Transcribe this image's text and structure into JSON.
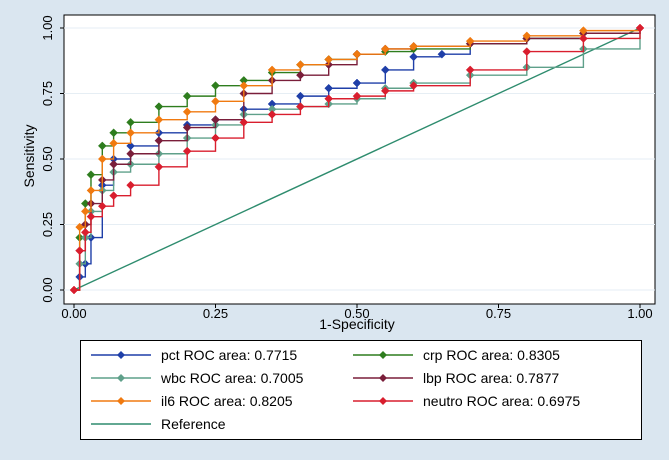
{
  "chart_data": {
    "type": "line",
    "xlabel": "1-Specificity",
    "ylabel": "Sensitivity",
    "xlim": [
      0,
      1
    ],
    "ylim": [
      0,
      1
    ],
    "xticks": [
      "0.00",
      "0.25",
      "0.50",
      "0.75",
      "1.00"
    ],
    "yticks": [
      "0.00",
      "0.25",
      "0.50",
      "0.75",
      "1.00"
    ],
    "legend_position": "bottom",
    "series": [
      {
        "name": "pct",
        "label": "pct ROC area: 0.7715",
        "color": "#1F3FA8",
        "marker": "diamond",
        "x": [
          0,
          0.01,
          0.02,
          0.03,
          0.05,
          0.07,
          0.1,
          0.15,
          0.2,
          0.25,
          0.3,
          0.35,
          0.4,
          0.45,
          0.5,
          0.55,
          0.6,
          0.65,
          0.7,
          0.8,
          0.9,
          1.0
        ],
        "y": [
          0,
          0.05,
          0.1,
          0.2,
          0.4,
          0.5,
          0.55,
          0.6,
          0.63,
          0.65,
          0.69,
          0.71,
          0.74,
          0.77,
          0.79,
          0.84,
          0.89,
          0.9,
          0.94,
          0.96,
          0.98,
          1.0
        ]
      },
      {
        "name": "crp",
        "label": "crp ROC area: 0.8305",
        "color": "#2E7D1E",
        "marker": "diamond",
        "x": [
          0,
          0.01,
          0.02,
          0.03,
          0.05,
          0.07,
          0.1,
          0.15,
          0.2,
          0.25,
          0.3,
          0.35,
          0.4,
          0.45,
          0.5,
          0.55,
          0.6,
          0.7,
          0.8,
          0.9,
          1.0
        ],
        "y": [
          0,
          0.2,
          0.33,
          0.44,
          0.55,
          0.6,
          0.64,
          0.7,
          0.74,
          0.78,
          0.8,
          0.83,
          0.86,
          0.88,
          0.9,
          0.91,
          0.92,
          0.94,
          0.96,
          0.98,
          1.0
        ]
      },
      {
        "name": "wbc",
        "label": "wbc ROC area: 0.7005",
        "color": "#5FA08A",
        "marker": "diamond",
        "x": [
          0,
          0.01,
          0.02,
          0.03,
          0.05,
          0.07,
          0.1,
          0.15,
          0.2,
          0.25,
          0.3,
          0.35,
          0.4,
          0.45,
          0.5,
          0.55,
          0.6,
          0.7,
          0.8,
          0.9,
          1.0
        ],
        "y": [
          0,
          0.1,
          0.2,
          0.3,
          0.38,
          0.45,
          0.48,
          0.52,
          0.58,
          0.63,
          0.67,
          0.69,
          0.7,
          0.71,
          0.73,
          0.77,
          0.79,
          0.82,
          0.85,
          0.92,
          1.0
        ]
      },
      {
        "name": "lbp",
        "label": "lbp ROC area: 0.7877",
        "color": "#7A1E3A",
        "marker": "diamond",
        "x": [
          0,
          0.01,
          0.02,
          0.03,
          0.05,
          0.07,
          0.1,
          0.15,
          0.2,
          0.25,
          0.3,
          0.35,
          0.4,
          0.45,
          0.5,
          0.55,
          0.6,
          0.7,
          0.8,
          0.9,
          1.0
        ],
        "y": [
          0,
          0.15,
          0.25,
          0.33,
          0.42,
          0.48,
          0.52,
          0.57,
          0.62,
          0.65,
          0.75,
          0.8,
          0.82,
          0.86,
          0.9,
          0.92,
          0.93,
          0.94,
          0.96,
          0.98,
          1.0
        ]
      },
      {
        "name": "il6",
        "label": "il6 ROC area: 0.8205",
        "color": "#F07A10",
        "marker": "diamond",
        "x": [
          0,
          0.01,
          0.02,
          0.03,
          0.05,
          0.07,
          0.1,
          0.15,
          0.2,
          0.25,
          0.3,
          0.35,
          0.4,
          0.45,
          0.5,
          0.55,
          0.6,
          0.7,
          0.8,
          0.9,
          1.0
        ],
        "y": [
          0,
          0.24,
          0.3,
          0.38,
          0.5,
          0.56,
          0.6,
          0.65,
          0.68,
          0.72,
          0.78,
          0.84,
          0.86,
          0.88,
          0.9,
          0.92,
          0.93,
          0.95,
          0.97,
          0.99,
          1.0
        ]
      },
      {
        "name": "neutro",
        "label": "neutro ROC area: 0.6975",
        "color": "#D91E2E",
        "marker": "diamond",
        "x": [
          0,
          0.01,
          0.02,
          0.03,
          0.05,
          0.07,
          0.1,
          0.15,
          0.2,
          0.25,
          0.3,
          0.35,
          0.4,
          0.45,
          0.5,
          0.55,
          0.6,
          0.7,
          0.8,
          0.9,
          1.0
        ],
        "y": [
          0,
          0.15,
          0.22,
          0.28,
          0.32,
          0.36,
          0.4,
          0.47,
          0.53,
          0.58,
          0.64,
          0.67,
          0.7,
          0.73,
          0.74,
          0.76,
          0.78,
          0.84,
          0.91,
          0.96,
          1.0
        ]
      },
      {
        "name": "reference",
        "label": "Reference",
        "color": "#2E8C6E",
        "marker": "none",
        "x": [
          0,
          1
        ],
        "y": [
          0,
          1
        ]
      }
    ]
  }
}
